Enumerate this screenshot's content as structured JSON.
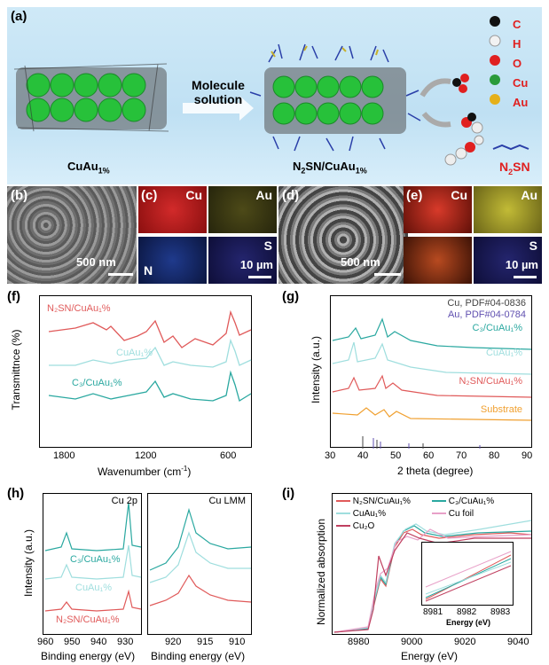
{
  "panel_a": {
    "label": "(a)",
    "left_caption": "CuAu",
    "left_caption_sub": "1%",
    "arrow_text_1": "Molecule",
    "arrow_text_2": "solution",
    "right_caption": "N",
    "right_caption_2": "SN/CuAu",
    "right_caption_sub1": "2",
    "right_caption_sub2": "1%",
    "legend": [
      {
        "symbol": "C",
        "color": "#111111"
      },
      {
        "symbol": "H",
        "color": "#f2f2f2"
      },
      {
        "symbol": "O",
        "color": "#e02020"
      },
      {
        "symbol": "Cu",
        "color": "#2a9b3a"
      },
      {
        "symbol": "Au",
        "color": "#e5b019"
      }
    ],
    "n2sn_label": "N",
    "n2sn_label_2": "SN",
    "n2sn_sub": "2"
  },
  "panel_b": {
    "label": "(b)",
    "scale": "500 nm"
  },
  "panel_c": {
    "label": "(c)",
    "tiles": [
      "Cu",
      "Au",
      "N",
      "S"
    ],
    "scale": "10 µm",
    "colors": [
      "#c81e1e",
      "#5c5a1e",
      "#1f3a8c",
      "#1d1e66"
    ]
  },
  "panel_d": {
    "label": "(d)",
    "scale": "500 nm"
  },
  "panel_e": {
    "label": "(e)",
    "tiles": [
      "Cu",
      "Au",
      "",
      "S"
    ],
    "scale": "10 µm",
    "colors": [
      "#c8281e",
      "#b8b02a",
      "#8a3418",
      "#1d1e66"
    ]
  },
  "panel_f": {
    "label": "(f)",
    "ylabel": "Transmittnce (%)",
    "xlabel": "Wavenumber (cm",
    "xlabel_sup": "-1",
    "xlabel_end": ")",
    "xticks": [
      "1800",
      "1200",
      "600"
    ],
    "series": [
      {
        "name": "N₂SN/CuAu₁%",
        "color": "#e05a5a"
      },
      {
        "name": "CuAu₁%",
        "color": "#9fdede"
      },
      {
        "name": "C₃/CuAu₁%",
        "color": "#2aa8a0"
      }
    ]
  },
  "panel_g": {
    "label": "(g)",
    "ylabel": "Intensity (a.u.)",
    "xlabel": "2 theta (degree)",
    "xticks": [
      "30",
      "40",
      "50",
      "60",
      "70",
      "80",
      "90"
    ],
    "refs": [
      "Cu, PDF#04-0836",
      "Au, PDF#04-0784"
    ],
    "series": [
      {
        "name": "C₃/CuAu₁%",
        "color": "#2aa8a0"
      },
      {
        "name": "CuAu₁%",
        "color": "#9fdede"
      },
      {
        "name": "N₂SN/CuAu₁%",
        "color": "#e05a5a"
      },
      {
        "name": "Substrate",
        "color": "#f0a030"
      }
    ]
  },
  "panel_h": {
    "label": "(h)",
    "ylabel": "Intensity (a.u.)",
    "left_title": "Cu 2p",
    "right_title": "Cu LMM",
    "xlabel": "Binding energy (eV)",
    "xticks_left": [
      "960",
      "950",
      "940",
      "930"
    ],
    "xticks_right": [
      "920",
      "915",
      "910"
    ],
    "series": [
      {
        "name": "C₃/CuAu₁%",
        "color": "#2aa8a0"
      },
      {
        "name": "CuAu₁%",
        "color": "#9fdede"
      },
      {
        "name": "N₂SN/CuAu₁%",
        "color": "#e05a5a"
      }
    ]
  },
  "panel_i": {
    "label": "(i)",
    "ylabel": "Normalized absorption",
    "xlabel": "Energy (eV)",
    "xticks": [
      "8980",
      "9000",
      "9020",
      "9040"
    ],
    "inset_xticks": [
      "8981",
      "8982",
      "8983"
    ],
    "inset_xlabel": "Energy (eV)",
    "legend": [
      {
        "name": "N₂SN/CuAu₁%",
        "color": "#e05a5a"
      },
      {
        "name": "C₃/CuAu₁%",
        "color": "#2aa8a0"
      },
      {
        "name": "CuAu₁%",
        "color": "#9fdede"
      },
      {
        "name": "Cu foil",
        "color": "#e8a0c8"
      },
      {
        "name": "Cu₂O",
        "color": "#c04060"
      }
    ]
  }
}
